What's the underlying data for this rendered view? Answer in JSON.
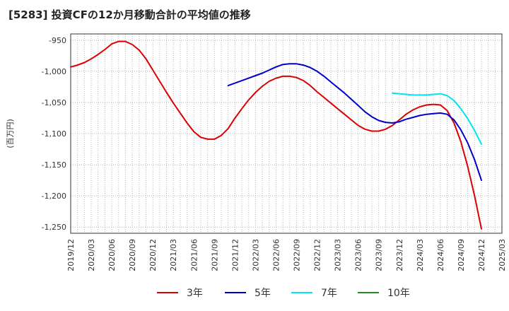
{
  "title": "[5283]  投資CFの12か月移動合計の平均値の推移",
  "chart_data": {
    "type": "line",
    "title": "[5283]  投資CFの12か月移動合計の平均値の推移",
    "ylabel": "(百万円)",
    "xlabel": "",
    "ylim": [
      -1260,
      -940
    ],
    "yticks": [
      -950,
      -1000,
      -1050,
      -1100,
      -1150,
      -1200,
      -1250
    ],
    "ytick_labels": [
      "-950",
      "-1,000",
      "-1,050",
      "-1,100",
      "-1,150",
      "-1,200",
      "-1,250"
    ],
    "xtick_labels": [
      "2019/12",
      "2020/03",
      "2020/06",
      "2020/09",
      "2020/12",
      "2021/03",
      "2021/06",
      "2021/09",
      "2021/12",
      "2022/03",
      "2022/06",
      "2022/09",
      "2022/12",
      "2023/03",
      "2023/06",
      "2023/09",
      "2023/12",
      "2024/03",
      "2024/06",
      "2024/09",
      "2024/12",
      "2025/03"
    ],
    "grid": true,
    "legend_position": "bottom",
    "series": [
      {
        "name": "3年",
        "color": "#dd0000",
        "points": [
          [
            "2019/12",
            -993
          ],
          [
            "2020/01",
            -990
          ],
          [
            "2020/02",
            -986
          ],
          [
            "2020/03",
            -980
          ],
          [
            "2020/04",
            -973
          ],
          [
            "2020/05",
            -965
          ],
          [
            "2020/06",
            -956
          ],
          [
            "2020/07",
            -952
          ],
          [
            "2020/08",
            -952
          ],
          [
            "2020/09",
            -957
          ],
          [
            "2020/10",
            -966
          ],
          [
            "2020/11",
            -980
          ],
          [
            "2020/12",
            -998
          ],
          [
            "2021/01",
            -1016
          ],
          [
            "2021/02",
            -1034
          ],
          [
            "2021/03",
            -1051
          ],
          [
            "2021/04",
            -1067
          ],
          [
            "2021/05",
            -1083
          ],
          [
            "2021/06",
            -1097
          ],
          [
            "2021/07",
            -1106
          ],
          [
            "2021/08",
            -1109
          ],
          [
            "2021/09",
            -1109
          ],
          [
            "2021/10",
            -1103
          ],
          [
            "2021/11",
            -1092
          ],
          [
            "2021/12",
            -1075
          ],
          [
            "2022/01",
            -1060
          ],
          [
            "2022/02",
            -1046
          ],
          [
            "2022/03",
            -1034
          ],
          [
            "2022/04",
            -1024
          ],
          [
            "2022/05",
            -1016
          ],
          [
            "2022/06",
            -1011
          ],
          [
            "2022/07",
            -1008
          ],
          [
            "2022/08",
            -1008
          ],
          [
            "2022/09",
            -1010
          ],
          [
            "2022/10",
            -1015
          ],
          [
            "2022/11",
            -1023
          ],
          [
            "2022/12",
            -1033
          ],
          [
            "2023/01",
            -1042
          ],
          [
            "2023/02",
            -1051
          ],
          [
            "2023/03",
            -1060
          ],
          [
            "2023/04",
            -1069
          ],
          [
            "2023/05",
            -1078
          ],
          [
            "2023/06",
            -1087
          ],
          [
            "2023/07",
            -1093
          ],
          [
            "2023/08",
            -1096
          ],
          [
            "2023/09",
            -1096
          ],
          [
            "2023/10",
            -1093
          ],
          [
            "2023/11",
            -1087
          ],
          [
            "2023/12",
            -1078
          ],
          [
            "2024/01",
            -1069
          ],
          [
            "2024/02",
            -1062
          ],
          [
            "2024/03",
            -1057
          ],
          [
            "2024/04",
            -1054
          ],
          [
            "2024/05",
            -1053
          ],
          [
            "2024/06",
            -1054
          ],
          [
            "2024/07",
            -1063
          ],
          [
            "2024/08",
            -1083
          ],
          [
            "2024/09",
            -1113
          ],
          [
            "2024/10",
            -1153
          ],
          [
            "2024/11",
            -1200
          ],
          [
            "2024/12",
            -1253
          ]
        ]
      },
      {
        "name": "5年",
        "color": "#0000cc",
        "points": [
          [
            "2021/11",
            -1023
          ],
          [
            "2021/12",
            -1019
          ],
          [
            "2022/01",
            -1015
          ],
          [
            "2022/02",
            -1011
          ],
          [
            "2022/03",
            -1007
          ],
          [
            "2022/04",
            -1003
          ],
          [
            "2022/05",
            -998
          ],
          [
            "2022/06",
            -993
          ],
          [
            "2022/07",
            -989
          ],
          [
            "2022/08",
            -988
          ],
          [
            "2022/09",
            -988
          ],
          [
            "2022/10",
            -990
          ],
          [
            "2022/11",
            -994
          ],
          [
            "2022/12",
            -1000
          ],
          [
            "2023/01",
            -1008
          ],
          [
            "2023/02",
            -1017
          ],
          [
            "2023/03",
            -1026
          ],
          [
            "2023/04",
            -1035
          ],
          [
            "2023/05",
            -1045
          ],
          [
            "2023/06",
            -1055
          ],
          [
            "2023/07",
            -1065
          ],
          [
            "2023/08",
            -1073
          ],
          [
            "2023/09",
            -1079
          ],
          [
            "2023/10",
            -1082
          ],
          [
            "2023/11",
            -1083
          ],
          [
            "2023/12",
            -1081
          ],
          [
            "2024/01",
            -1077
          ],
          [
            "2024/02",
            -1074
          ],
          [
            "2024/03",
            -1071
          ],
          [
            "2024/04",
            -1069
          ],
          [
            "2024/05",
            -1068
          ],
          [
            "2024/06",
            -1067
          ],
          [
            "2024/07",
            -1069
          ],
          [
            "2024/08",
            -1078
          ],
          [
            "2024/09",
            -1094
          ],
          [
            "2024/10",
            -1115
          ],
          [
            "2024/11",
            -1142
          ],
          [
            "2024/12",
            -1175
          ]
        ]
      },
      {
        "name": "7年",
        "color": "#00e5ee",
        "points": [
          [
            "2023/11",
            -1035
          ],
          [
            "2023/12",
            -1036
          ],
          [
            "2024/01",
            -1037
          ],
          [
            "2024/02",
            -1038
          ],
          [
            "2024/03",
            -1038
          ],
          [
            "2024/04",
            -1038
          ],
          [
            "2024/05",
            -1037
          ],
          [
            "2024/06",
            -1036
          ],
          [
            "2024/07",
            -1039
          ],
          [
            "2024/08",
            -1047
          ],
          [
            "2024/09",
            -1060
          ],
          [
            "2024/10",
            -1076
          ],
          [
            "2024/11",
            -1095
          ],
          [
            "2024/12",
            -1117
          ]
        ]
      },
      {
        "name": "10年",
        "color": "#228b22",
        "points": []
      }
    ]
  }
}
